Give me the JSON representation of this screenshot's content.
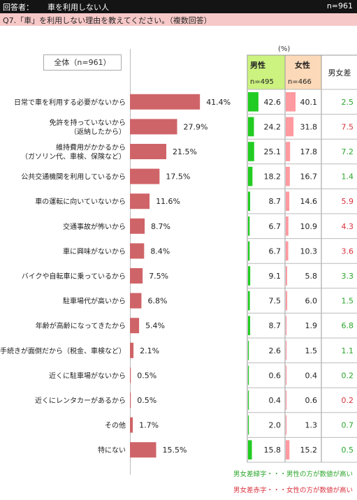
{
  "header": {
    "respondent_label": "回答者：",
    "respondent_value": "車を利用しない人",
    "n_total": "n=961"
  },
  "question": "Q7.「車」を利用しない理由を教えてください。（複数回答）",
  "overall_label": "全体（n=961）",
  "unit_label": "(%)",
  "table_headers": {
    "male": "男性",
    "male_n": "n=495",
    "female": "女性",
    "female_n": "n=466",
    "diff": "男女差"
  },
  "legend": {
    "green": "男女差緑字・・・男性の方が数値が高い",
    "red": "男女差赤字・・・女性の方が数値が高い"
  },
  "colors": {
    "bar": "#cf6468",
    "male_bar": "#22cc22",
    "female_bar": "#ff9aa0",
    "male_header_bg": "#ccf280",
    "female_header_bg": "#fcd9b8",
    "diff_green": "#2ba52b",
    "diff_red": "#d9323f"
  },
  "chart_data": {
    "type": "bar",
    "orientation": "horizontal",
    "categories": [
      "日常で車を利用する必要がないから",
      "免許を持っていないから\n（返納したから）",
      "維持費用がかかるから\n（ガソリン代、車検、保険など）",
      "公共交通機関を利用しているから",
      "車の運転に向いていないから",
      "交通事故が怖いから",
      "車に興味がないから",
      "バイクや自転車に乗っているから",
      "駐車場代が高いから",
      "年齢が高齢になってきたから",
      "手続きが面倒だから（税金、車検など）",
      "近くに駐車場がないから",
      "近くにレンタカーがあるから",
      "その他",
      "特にない"
    ],
    "series": [
      {
        "name": "全体（n=961）",
        "values": [
          41.4,
          27.9,
          21.5,
          17.5,
          11.6,
          8.7,
          8.4,
          7.5,
          6.8,
          5.4,
          2.1,
          0.5,
          0.5,
          1.7,
          15.5
        ],
        "labels": [
          "41.4%",
          "27.9%",
          "21.5%",
          "17.5%",
          "11.6%",
          "8.7%",
          "8.4%",
          "7.5%",
          "6.8%",
          "5.4%",
          "2.1%",
          "0.5%",
          "0.5%",
          "1.7%",
          "15.5%"
        ]
      },
      {
        "name": "男性",
        "values": [
          42.6,
          24.2,
          25.1,
          18.2,
          8.7,
          6.7,
          6.7,
          9.1,
          7.5,
          8.7,
          2.6,
          0.6,
          0.4,
          2.0,
          15.8
        ],
        "labels": [
          "42.6",
          "24.2",
          "25.1",
          "18.2",
          "8.7",
          "6.7",
          "6.7",
          "9.1",
          "7.5",
          "8.7",
          "2.6",
          "0.6",
          "0.4",
          "2.0",
          "15.8"
        ]
      },
      {
        "name": "女性",
        "values": [
          40.1,
          31.8,
          17.8,
          16.7,
          14.6,
          10.9,
          10.3,
          5.8,
          6.0,
          1.9,
          1.5,
          0.4,
          0.6,
          1.3,
          15.2
        ],
        "labels": [
          "40.1",
          "31.8",
          "17.8",
          "16.7",
          "14.6",
          "10.9",
          "10.3",
          "5.8",
          "6.0",
          "1.9",
          "1.5",
          "0.4",
          "0.6",
          "1.3",
          "15.2"
        ]
      },
      {
        "name": "男女差",
        "values": [
          2.5,
          7.5,
          7.2,
          1.4,
          5.9,
          4.3,
          3.6,
          3.3,
          1.5,
          6.8,
          1.1,
          0.2,
          0.2,
          0.7,
          0.5
        ],
        "labels": [
          "2.5",
          "7.5",
          "7.2",
          "1.4",
          "5.9",
          "4.3",
          "3.6",
          "3.3",
          "1.5",
          "6.8",
          "1.1",
          "0.2",
          "0.2",
          "0.7",
          "0.5"
        ],
        "higher": [
          "male",
          "female",
          "male",
          "male",
          "female",
          "female",
          "female",
          "male",
          "male",
          "male",
          "male",
          "male",
          "female",
          "male",
          "male"
        ]
      }
    ],
    "xlim": [
      0,
      50
    ],
    "grid": false
  }
}
